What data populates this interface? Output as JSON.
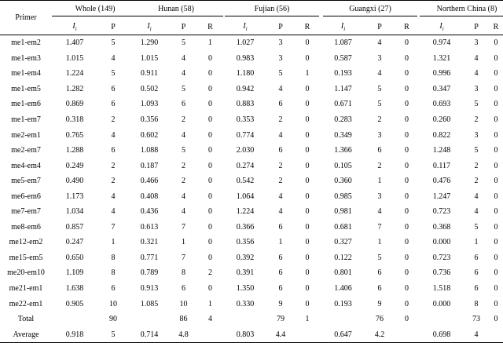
{
  "table": {
    "primer_header": "Primer",
    "groups": [
      {
        "title": "Whole (149)",
        "cols": [
          "Ii",
          "P"
        ]
      },
      {
        "title": "Hunan (58)",
        "cols": [
          "Ii",
          "P",
          "R"
        ]
      },
      {
        "title": "Fujian (56)",
        "cols": [
          "Ii",
          "P",
          "R"
        ]
      },
      {
        "title": "Guangxi (27)",
        "cols": [
          "Ii",
          "P",
          "R"
        ]
      },
      {
        "title": "Northern China (8)",
        "cols": [
          "Ii",
          "P",
          "R"
        ]
      }
    ],
    "rows": [
      [
        "me1-em2",
        "1.407",
        "5",
        "1.290",
        "5",
        "1",
        "1.027",
        "3",
        "0",
        "1.087",
        "4",
        "0",
        "0.974",
        "3",
        "0"
      ],
      [
        "me1-em3",
        "1.015",
        "4",
        "1.015",
        "4",
        "0",
        "0.983",
        "3",
        "0",
        "0.587",
        "3",
        "0",
        "1.321",
        "4",
        "0"
      ],
      [
        "me1-em4",
        "1.224",
        "5",
        "0.911",
        "4",
        "0",
        "1.180",
        "5",
        "1",
        "0.193",
        "4",
        "0",
        "0.996",
        "4",
        "0"
      ],
      [
        "me1-em5",
        "1.282",
        "6",
        "0.502",
        "5",
        "0",
        "0.942",
        "4",
        "0",
        "1.147",
        "5",
        "0",
        "0.347",
        "3",
        "0"
      ],
      [
        "me1-em6",
        "0.869",
        "6",
        "1.093",
        "6",
        "0",
        "0.883",
        "6",
        "0",
        "0.671",
        "5",
        "0",
        "0.693",
        "5",
        "0"
      ],
      [
        "me1-em7",
        "0.318",
        "2",
        "0.356",
        "2",
        "0",
        "0.353",
        "2",
        "0",
        "0.283",
        "2",
        "0",
        "0.260",
        "2",
        "0"
      ],
      [
        "me2-em1",
        "0.765",
        "4",
        "0.602",
        "4",
        "0",
        "0.774",
        "4",
        "0",
        "0.349",
        "3",
        "0",
        "0.822",
        "3",
        "0"
      ],
      [
        "me2-em7",
        "1.288",
        "6",
        "1.088",
        "5",
        "0",
        "2.030",
        "6",
        "0",
        "1.366",
        "6",
        "0",
        "1.248",
        "5",
        "0"
      ],
      [
        "me4-em4",
        "0.249",
        "2",
        "0.187",
        "2",
        "0",
        "0.274",
        "2",
        "0",
        "0.105",
        "2",
        "0",
        "0.117",
        "2",
        "0"
      ],
      [
        "me5-em7",
        "0.490",
        "2",
        "0.466",
        "2",
        "0",
        "0.542",
        "2",
        "0",
        "0.360",
        "1",
        "0",
        "0.476",
        "2",
        "0"
      ],
      [
        "me6-em6",
        "1.173",
        "4",
        "0.408",
        "4",
        "0",
        "1.064",
        "4",
        "0",
        "0.985",
        "3",
        "0",
        "1.247",
        "4",
        "0"
      ],
      [
        "me7-em7",
        "1.034",
        "4",
        "0.436",
        "4",
        "0",
        "1.224",
        "4",
        "0",
        "0.981",
        "4",
        "0",
        "0.723",
        "4",
        "0"
      ],
      [
        "me8-em6",
        "0.857",
        "7",
        "0.613",
        "7",
        "0",
        "0.366",
        "6",
        "0",
        "0.681",
        "7",
        "0",
        "0.368",
        "5",
        "0"
      ],
      [
        "me12-em2",
        "0.247",
        "1",
        "0.321",
        "1",
        "0",
        "0.356",
        "1",
        "0",
        "0.327",
        "1",
        "0",
        "0.000",
        "1",
        "0"
      ],
      [
        "me15-em5",
        "0.650",
        "8",
        "0.771",
        "7",
        "0",
        "0.392",
        "6",
        "0",
        "0.122",
        "5",
        "0",
        "0.723",
        "6",
        "0"
      ],
      [
        "me20-em10",
        "1.109",
        "8",
        "0.789",
        "8",
        "2",
        "0.391",
        "6",
        "0",
        "0.801",
        "6",
        "0",
        "0.736",
        "6",
        "0"
      ],
      [
        "me21-em1",
        "1.638",
        "6",
        "0.913",
        "6",
        "0",
        "1.350",
        "6",
        "0",
        "1.406",
        "6",
        "0",
        "1.518",
        "6",
        "0"
      ],
      [
        "me22-em1",
        "0.905",
        "10",
        "1.085",
        "10",
        "1",
        "0.330",
        "9",
        "0",
        "0.193",
        "9",
        "0",
        "0.000",
        "8",
        "0"
      ],
      [
        "Total",
        "",
        "90",
        "",
        "86",
        "4",
        "",
        "79",
        "1",
        "",
        "76",
        "0",
        "",
        "73",
        "0"
      ],
      [
        "Average",
        "0.918",
        "5",
        "0.714",
        "4.8",
        "",
        "0.803",
        "4.4",
        "",
        "0.647",
        "4.2",
        "",
        "0.698",
        "4",
        ""
      ]
    ]
  }
}
